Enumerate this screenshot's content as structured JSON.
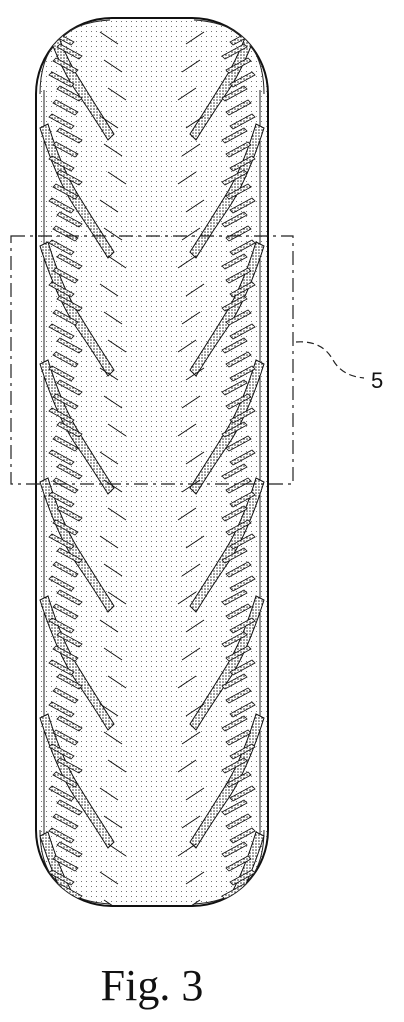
{
  "figure": {
    "caption": "Fig. 3",
    "detail_ref": "5"
  }
}
